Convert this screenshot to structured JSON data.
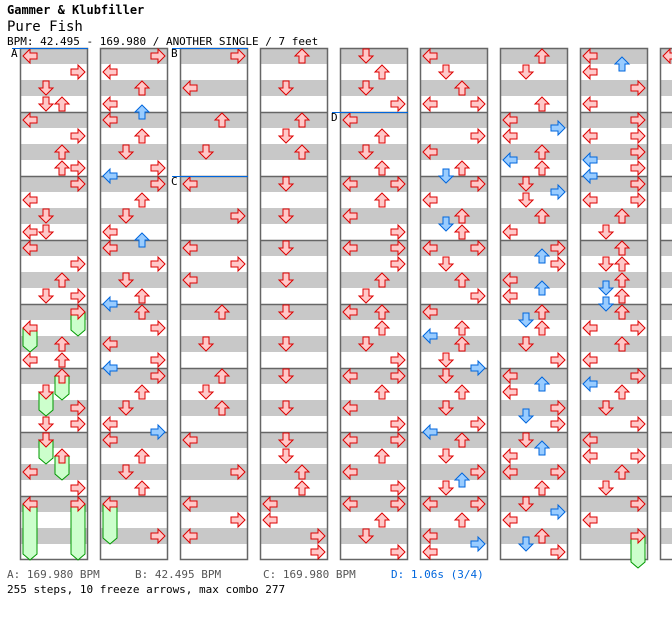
{
  "header": {
    "artist": "Gammer & Klubfiller",
    "title": "Pure Fish",
    "info": "BPM: 42.495 - 169.980 / ANOTHER SINGLE / 7 feet"
  },
  "footer": {
    "bpm_a": "A: 169.980 BPM",
    "bpm_b": "B: 42.495 BPM",
    "bpm_c": "C: 169.980 BPM",
    "stop_d": "D: 1.06s (3/4)",
    "summary": "255 steps, 10 freeze arrows, max combo 277"
  },
  "colors": {
    "red_fill": "#ffc8c8",
    "red_stroke": "#dd0000",
    "blue_fill": "#99ccff",
    "blue_stroke": "#0066dd",
    "freeze_fill": "#ccffcc",
    "freeze_stroke": "#009900",
    "marker": "#0066dd"
  },
  "markers": [
    {
      "label": "A",
      "column": 1,
      "row": 0
    },
    {
      "label": "B",
      "column": 3,
      "row": 0
    },
    {
      "label": "C",
      "column": 3,
      "row": 16
    },
    {
      "label": "D",
      "column": 5,
      "row": 8
    }
  ],
  "columns": [
    {
      "notes": [
        [
          0,
          "L"
        ],
        [
          2,
          "R"
        ],
        [
          4,
          "D"
        ],
        [
          6,
          "D"
        ],
        [
          6,
          "U"
        ],
        [
          8,
          "L"
        ],
        [
          10,
          "R"
        ],
        [
          12,
          "U"
        ],
        [
          14,
          "U"
        ],
        [
          14,
          "R"
        ],
        [
          16,
          "R"
        ],
        [
          18,
          "L"
        ],
        [
          20,
          "D"
        ],
        [
          22,
          "L"
        ],
        [
          22,
          "D"
        ],
        [
          24,
          "L"
        ],
        [
          26,
          "R"
        ],
        [
          28,
          "U"
        ],
        [
          30,
          "D"
        ],
        [
          30,
          "R"
        ],
        [
          32,
          "R"
        ],
        [
          34,
          "L"
        ],
        [
          36,
          "U"
        ],
        [
          38,
          "L"
        ],
        [
          38,
          "U"
        ],
        [
          40,
          "U"
        ],
        [
          42,
          "D"
        ],
        [
          44,
          "R"
        ],
        [
          46,
          "D"
        ],
        [
          46,
          "R"
        ],
        [
          48,
          "D"
        ],
        [
          50,
          "U"
        ],
        [
          52,
          "L"
        ],
        [
          54,
          "R"
        ],
        [
          56,
          "L"
        ],
        [
          56,
          "R"
        ]
      ],
      "freezes": [
        [
          32,
          "R",
          3
        ],
        [
          34,
          "L",
          3
        ],
        [
          40,
          "U",
          3
        ],
        [
          42,
          "D",
          3
        ],
        [
          48,
          "D",
          3
        ],
        [
          50,
          "U",
          3
        ],
        [
          56,
          "L",
          7
        ],
        [
          56,
          "R",
          7
        ]
      ]
    },
    {
      "notes": [
        [
          0,
          "R"
        ],
        [
          2,
          "L"
        ],
        [
          4,
          "U"
        ],
        [
          6,
          "L"
        ],
        [
          7,
          "U"
        ],
        [
          8,
          "L"
        ],
        [
          10,
          "U"
        ],
        [
          12,
          "D"
        ],
        [
          14,
          "R"
        ],
        [
          15,
          "L"
        ],
        [
          16,
          "R"
        ],
        [
          18,
          "U"
        ],
        [
          20,
          "D"
        ],
        [
          22,
          "L"
        ],
        [
          23,
          "U"
        ],
        [
          24,
          "L"
        ],
        [
          26,
          "R"
        ],
        [
          28,
          "D"
        ],
        [
          30,
          "U"
        ],
        [
          31,
          "L"
        ],
        [
          32,
          "U"
        ],
        [
          34,
          "R"
        ],
        [
          36,
          "L"
        ],
        [
          38,
          "R"
        ],
        [
          39,
          "L"
        ],
        [
          40,
          "R"
        ],
        [
          42,
          "U"
        ],
        [
          44,
          "D"
        ],
        [
          46,
          "L"
        ],
        [
          47,
          "R"
        ],
        [
          48,
          "L"
        ],
        [
          50,
          "U"
        ],
        [
          52,
          "D"
        ],
        [
          54,
          "U"
        ],
        [
          56,
          "L"
        ],
        [
          60,
          "R"
        ]
      ],
      "freezes": [
        [
          56,
          "L",
          5
        ]
      ]
    },
    {
      "notes": [
        [
          0,
          "R"
        ],
        [
          4,
          "L"
        ],
        [
          8,
          "U"
        ],
        [
          12,
          "D"
        ],
        [
          16,
          "L"
        ],
        [
          20,
          "R"
        ],
        [
          24,
          "L"
        ],
        [
          26,
          "R"
        ],
        [
          28,
          "L"
        ],
        [
          32,
          "U"
        ],
        [
          36,
          "D"
        ],
        [
          40,
          "U"
        ],
        [
          42,
          "D"
        ],
        [
          44,
          "U"
        ],
        [
          48,
          "L"
        ],
        [
          52,
          "R"
        ],
        [
          56,
          "L"
        ],
        [
          58,
          "R"
        ],
        [
          60,
          "L"
        ]
      ],
      "freezes": []
    },
    {
      "notes": [
        [
          0,
          "U"
        ],
        [
          4,
          "D"
        ],
        [
          8,
          "U"
        ],
        [
          10,
          "D"
        ],
        [
          12,
          "U"
        ],
        [
          16,
          "D"
        ],
        [
          20,
          "D"
        ],
        [
          24,
          "D"
        ],
        [
          28,
          "D"
        ],
        [
          32,
          "D"
        ],
        [
          36,
          "D"
        ],
        [
          40,
          "D"
        ],
        [
          44,
          "D"
        ],
        [
          48,
          "D"
        ],
        [
          50,
          "D"
        ],
        [
          52,
          "U"
        ],
        [
          54,
          "U"
        ],
        [
          56,
          "L"
        ],
        [
          58,
          "L"
        ],
        [
          60,
          "R"
        ],
        [
          62,
          "R"
        ]
      ],
      "freezes": []
    },
    {
      "notes": [
        [
          0,
          "D"
        ],
        [
          2,
          "U"
        ],
        [
          4,
          "D"
        ],
        [
          6,
          "R"
        ],
        [
          8,
          "L"
        ],
        [
          10,
          "U"
        ],
        [
          12,
          "D"
        ],
        [
          14,
          "U"
        ],
        [
          16,
          "L"
        ],
        [
          16,
          "R"
        ],
        [
          18,
          "U"
        ],
        [
          20,
          "L"
        ],
        [
          22,
          "R"
        ],
        [
          24,
          "L"
        ],
        [
          24,
          "R"
        ],
        [
          26,
          "R"
        ],
        [
          28,
          "U"
        ],
        [
          30,
          "D"
        ],
        [
          32,
          "L"
        ],
        [
          32,
          "U"
        ],
        [
          34,
          "U"
        ],
        [
          36,
          "D"
        ],
        [
          38,
          "R"
        ],
        [
          40,
          "L"
        ],
        [
          40,
          "R"
        ],
        [
          42,
          "U"
        ],
        [
          44,
          "L"
        ],
        [
          46,
          "R"
        ],
        [
          48,
          "L"
        ],
        [
          48,
          "R"
        ],
        [
          50,
          "U"
        ],
        [
          52,
          "L"
        ],
        [
          54,
          "R"
        ],
        [
          56,
          "L"
        ],
        [
          56,
          "R"
        ],
        [
          58,
          "U"
        ],
        [
          60,
          "D"
        ],
        [
          62,
          "R"
        ]
      ],
      "freezes": []
    },
    {
      "notes": [
        [
          0,
          "L"
        ],
        [
          2,
          "D"
        ],
        [
          4,
          "U"
        ],
        [
          6,
          "L"
        ],
        [
          6,
          "R"
        ],
        [
          10,
          "R"
        ],
        [
          12,
          "L"
        ],
        [
          14,
          "U"
        ],
        [
          15,
          "D"
        ],
        [
          16,
          "R"
        ],
        [
          18,
          "L"
        ],
        [
          20,
          "U"
        ],
        [
          21,
          "D"
        ],
        [
          22,
          "U"
        ],
        [
          24,
          "L"
        ],
        [
          24,
          "R"
        ],
        [
          26,
          "D"
        ],
        [
          28,
          "U"
        ],
        [
          30,
          "R"
        ],
        [
          32,
          "L"
        ],
        [
          34,
          "U"
        ],
        [
          35,
          "L"
        ],
        [
          36,
          "U"
        ],
        [
          38,
          "D"
        ],
        [
          39,
          "R"
        ],
        [
          40,
          "D"
        ],
        [
          42,
          "U"
        ],
        [
          44,
          "D"
        ],
        [
          46,
          "R"
        ],
        [
          47,
          "L"
        ],
        [
          48,
          "U"
        ],
        [
          50,
          "D"
        ],
        [
          52,
          "R"
        ],
        [
          53,
          "U"
        ],
        [
          54,
          "D"
        ],
        [
          56,
          "L"
        ],
        [
          56,
          "R"
        ],
        [
          58,
          "U"
        ],
        [
          60,
          "L"
        ],
        [
          61,
          "R"
        ],
        [
          62,
          "L"
        ]
      ],
      "freezes": []
    },
    {
      "notes": [
        [
          0,
          "U"
        ],
        [
          2,
          "D"
        ],
        [
          6,
          "U"
        ],
        [
          8,
          "L"
        ],
        [
          9,
          "R"
        ],
        [
          10,
          "L"
        ],
        [
          12,
          "U"
        ],
        [
          13,
          "L"
        ],
        [
          14,
          "U"
        ],
        [
          16,
          "D"
        ],
        [
          17,
          "R"
        ],
        [
          18,
          "D"
        ],
        [
          20,
          "U"
        ],
        [
          22,
          "L"
        ],
        [
          24,
          "R"
        ],
        [
          25,
          "U"
        ],
        [
          26,
          "R"
        ],
        [
          28,
          "L"
        ],
        [
          29,
          "U"
        ],
        [
          30,
          "L"
        ],
        [
          32,
          "U"
        ],
        [
          33,
          "D"
        ],
        [
          34,
          "U"
        ],
        [
          36,
          "D"
        ],
        [
          38,
          "R"
        ],
        [
          40,
          "L"
        ],
        [
          41,
          "U"
        ],
        [
          42,
          "L"
        ],
        [
          44,
          "R"
        ],
        [
          45,
          "D"
        ],
        [
          46,
          "R"
        ],
        [
          48,
          "D"
        ],
        [
          49,
          "U"
        ],
        [
          50,
          "L"
        ],
        [
          52,
          "L"
        ],
        [
          52,
          "R"
        ],
        [
          54,
          "U"
        ],
        [
          56,
          "D"
        ],
        [
          57,
          "R"
        ],
        [
          58,
          "L"
        ],
        [
          60,
          "U"
        ],
        [
          61,
          "D"
        ],
        [
          62,
          "R"
        ]
      ],
      "freezes": []
    },
    {
      "notes": [
        [
          0,
          "L"
        ],
        [
          1,
          "U"
        ],
        [
          2,
          "L"
        ],
        [
          4,
          "R"
        ],
        [
          6,
          "L"
        ],
        [
          8,
          "R"
        ],
        [
          10,
          "L"
        ],
        [
          10,
          "R"
        ],
        [
          12,
          "R"
        ],
        [
          13,
          "L"
        ],
        [
          14,
          "R"
        ],
        [
          15,
          "L"
        ],
        [
          16,
          "R"
        ],
        [
          18,
          "L"
        ],
        [
          18,
          "R"
        ],
        [
          20,
          "U"
        ],
        [
          22,
          "D"
        ],
        [
          24,
          "U"
        ],
        [
          26,
          "D"
        ],
        [
          26,
          "U"
        ],
        [
          28,
          "U"
        ],
        [
          29,
          "D"
        ],
        [
          30,
          "U"
        ],
        [
          31,
          "D"
        ],
        [
          32,
          "U"
        ],
        [
          34,
          "L"
        ],
        [
          34,
          "R"
        ],
        [
          36,
          "U"
        ],
        [
          38,
          "L"
        ],
        [
          40,
          "R"
        ],
        [
          41,
          "L"
        ],
        [
          42,
          "U"
        ],
        [
          44,
          "D"
        ],
        [
          46,
          "R"
        ],
        [
          48,
          "L"
        ],
        [
          50,
          "L"
        ],
        [
          50,
          "R"
        ],
        [
          52,
          "U"
        ],
        [
          54,
          "D"
        ],
        [
          56,
          "R"
        ],
        [
          58,
          "L"
        ],
        [
          60,
          "R"
        ]
      ],
      "freezes": [
        [
          60,
          "R",
          4
        ]
      ]
    },
    {
      "notes": [
        [
          0,
          "L"
        ]
      ],
      "freezes": []
    }
  ]
}
